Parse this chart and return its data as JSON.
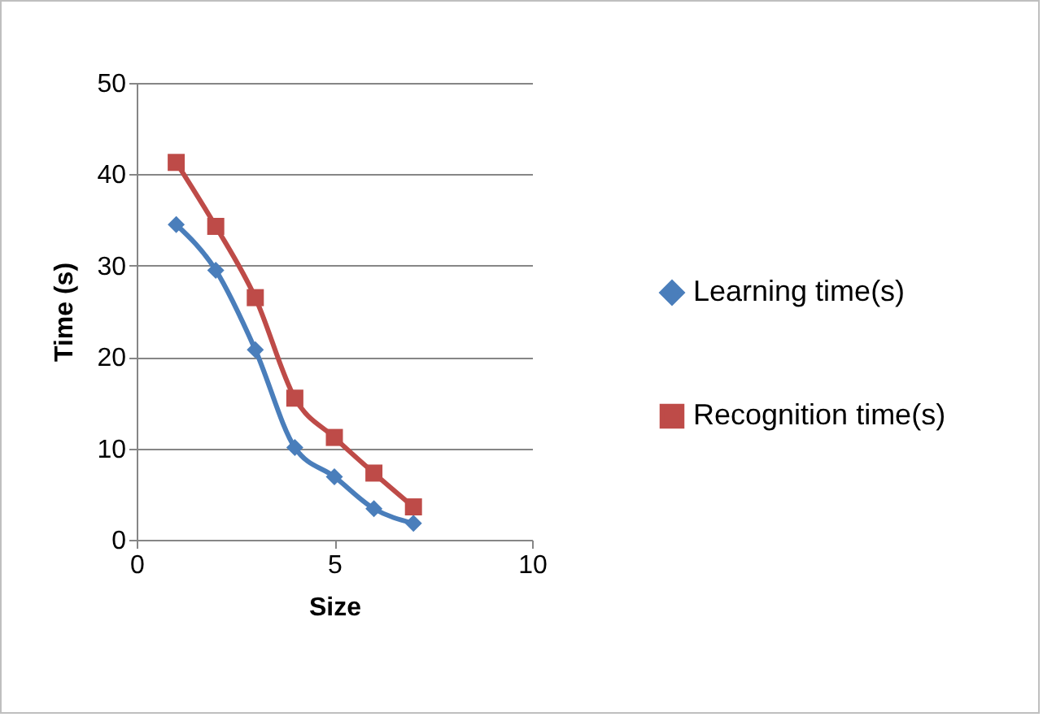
{
  "chart_data": {
    "type": "line",
    "xlabel": "Size",
    "ylabel": "Time (s)",
    "xlim": [
      0,
      10
    ],
    "xticks": [
      0,
      5,
      10
    ],
    "ylim": [
      0,
      50
    ],
    "yticks": [
      0,
      10,
      20,
      30,
      40,
      50
    ],
    "grid": "y",
    "legend": "right",
    "line_style": "solid",
    "x": [
      1,
      2,
      3,
      4,
      5,
      6,
      7
    ],
    "series": [
      {
        "name": "Learning time(s)",
        "color": "#4a7ebb",
        "marker": "diamond",
        "values": [
          34.5,
          29.5,
          20.8,
          10.1,
          6.9,
          3.4,
          1.8
        ]
      },
      {
        "name": "Recognition time(s)",
        "color": "#be4b48",
        "marker": "square",
        "values": [
          41.3,
          34.3,
          26.5,
          15.5,
          11.2,
          7.3,
          3.6
        ]
      }
    ]
  }
}
